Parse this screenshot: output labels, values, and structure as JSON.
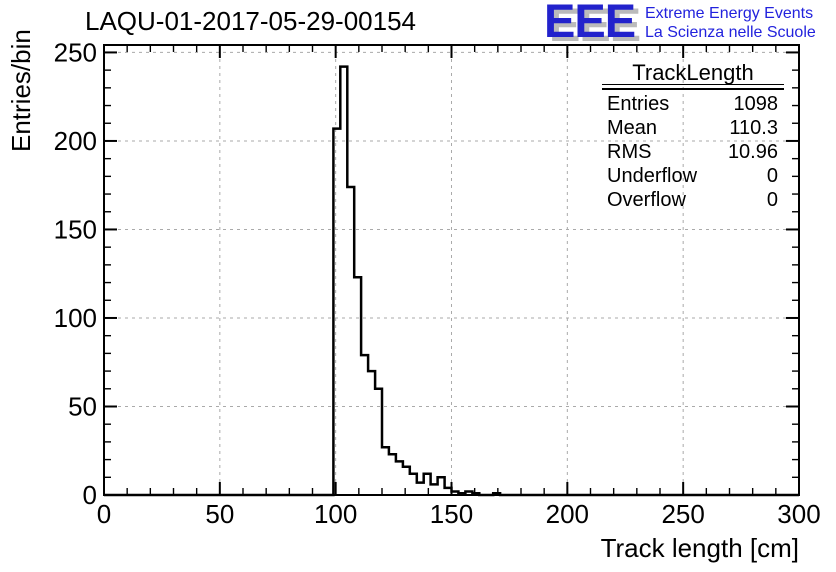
{
  "window": {
    "background": "#ffffff"
  },
  "header": {
    "plot_title": "LAQU-01-2017-05-29-00154",
    "logo": {
      "acronym": "EEE",
      "tagline_line1": "Extreme Energy Events",
      "tagline_line2": "La Scienza nelle Scuole",
      "acronym_color": "#2222cc",
      "shadow_color": "#bbbbbb",
      "tagline_color": "#2222dd"
    }
  },
  "stats_box": {
    "title": "TrackLength",
    "rows": [
      {
        "label": "Entries",
        "value": "1098"
      },
      {
        "label": "Mean",
        "value": "110.3"
      },
      {
        "label": "RMS",
        "value": "10.96"
      },
      {
        "label": "Underflow",
        "value": "0"
      },
      {
        "label": "Overflow",
        "value": "0"
      }
    ]
  },
  "chart_data": {
    "type": "bar",
    "subtype": "step-histogram",
    "title": "LAQU-01-2017-05-29-00154",
    "xlabel": "Track length [cm]",
    "ylabel": "Entries/bin",
    "xlim": [
      0,
      300
    ],
    "ylim": [
      0,
      254.2
    ],
    "x_major_ticks": [
      0,
      50,
      100,
      150,
      200,
      250,
      300
    ],
    "y_major_ticks": [
      0,
      50,
      100,
      150,
      200,
      250
    ],
    "minor_tick_step": 10,
    "grid": true,
    "grid_color": "#aaaaaa",
    "grid_style": "dashed",
    "line_color": "#000000",
    "bins": {
      "start": 99,
      "width": 3,
      "counts": [
        207,
        242,
        174,
        123,
        79,
        70,
        60,
        27,
        23,
        19,
        16,
        12,
        7,
        12,
        6,
        10,
        4,
        2,
        1,
        2,
        1,
        0,
        0,
        1
      ]
    },
    "stats": {
      "entries": 1098,
      "mean": 110.3,
      "rms": 10.96,
      "underflow": 0,
      "overflow": 0
    }
  }
}
